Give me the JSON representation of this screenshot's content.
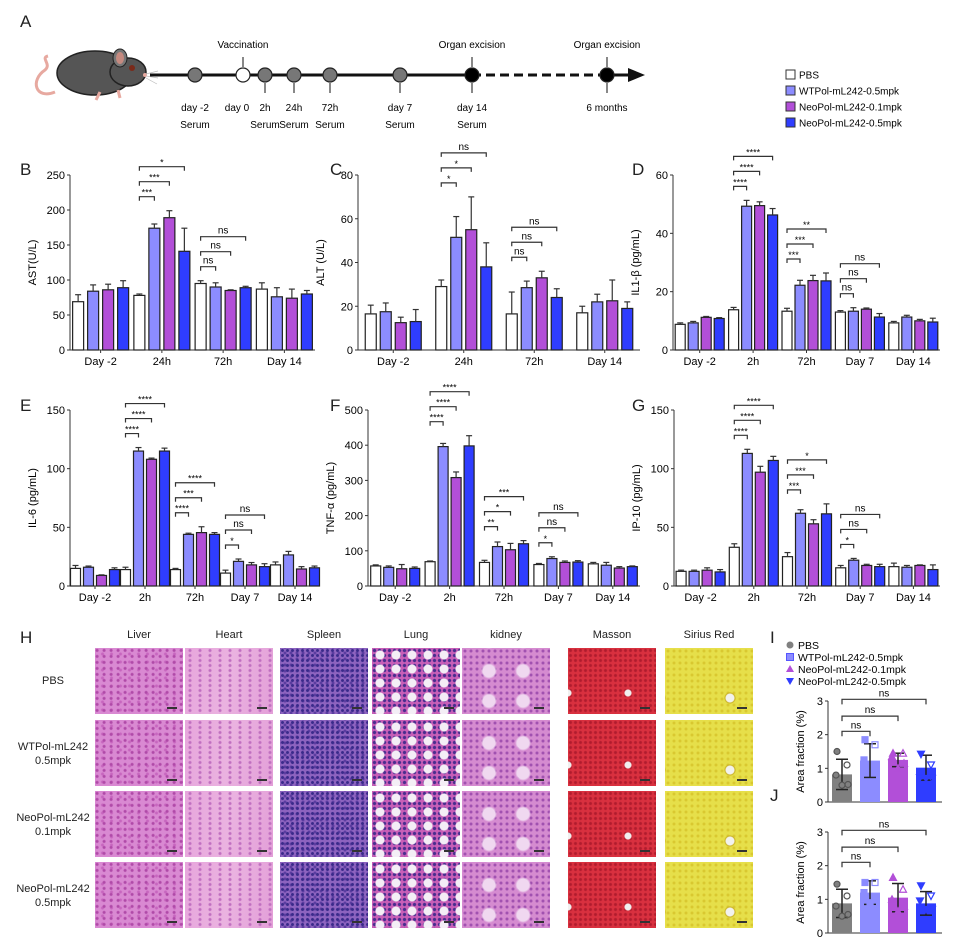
{
  "panel_labels": [
    "A",
    "B",
    "C",
    "D",
    "E",
    "F",
    "G",
    "H",
    "I",
    "J"
  ],
  "timeline": {
    "points": [
      {
        "label": "day -2",
        "sub": "Serum",
        "fill": "grey"
      },
      {
        "label": "day 0",
        "sub": "",
        "fill": "white"
      },
      {
        "label": "2h",
        "sub": "Serum",
        "fill": "grey"
      },
      {
        "label": "24h",
        "sub": "Serum",
        "fill": "grey"
      },
      {
        "label": "72h",
        "sub": "Serum",
        "fill": "grey"
      },
      {
        "label": "day 7",
        "sub": "Serum",
        "fill": "grey"
      },
      {
        "label": "day 14",
        "sub": "Serum",
        "fill": "black"
      },
      {
        "label": "6 months",
        "sub": "",
        "fill": "black"
      }
    ],
    "events": [
      {
        "label": "Vaccination",
        "at": "day 0"
      },
      {
        "label": "Organ excision",
        "at": "day 14"
      },
      {
        "label": "Organ excision",
        "at": "6 months"
      }
    ]
  },
  "legend": {
    "items": [
      {
        "label": "PBS",
        "color": "#ffffff"
      },
      {
        "label": "WTPol-mL242-0.5mpk",
        "color": "#8c8cff"
      },
      {
        "label": "NeoPol-mL242-0.1mpk",
        "color": "#b24fd8"
      },
      {
        "label": "NeoPol-mL242-0.5mpk",
        "color": "#2f3dff"
      }
    ]
  },
  "chart_data": [
    {
      "id": "B",
      "type": "bar",
      "ylabel": "AST(U/L)",
      "ylim": [
        0,
        250
      ],
      "yticks": [
        0,
        50,
        100,
        150,
        200,
        250
      ],
      "categories": [
        "Day -2",
        "24h",
        "72h",
        "Day 14"
      ],
      "series": [
        {
          "name": "PBS",
          "values": [
            69,
            78,
            95,
            87
          ],
          "errors": [
            10,
            2,
            4,
            9
          ]
        },
        {
          "name": "WTPol-mL242-0.5mpk",
          "values": [
            84,
            174,
            90,
            76
          ],
          "errors": [
            9,
            6,
            6,
            13
          ]
        },
        {
          "name": "NeoPol-mL242-0.1mpk",
          "values": [
            86,
            189,
            85,
            74
          ],
          "errors": [
            8,
            10,
            1,
            13
          ]
        },
        {
          "name": "NeoPol-mL242-0.5mpk",
          "values": [
            89,
            141,
            89,
            80
          ],
          "errors": [
            10,
            33,
            2,
            5
          ]
        }
      ],
      "significance": [
        {
          "category": "24h",
          "from": 0,
          "to": 1,
          "label": "***"
        },
        {
          "category": "24h",
          "from": 0,
          "to": 2,
          "label": "***"
        },
        {
          "category": "24h",
          "from": 0,
          "to": 3,
          "label": "*"
        },
        {
          "category": "72h",
          "from": 0,
          "to": 1,
          "label": "ns"
        },
        {
          "category": "72h",
          "from": 0,
          "to": 2,
          "label": "ns"
        },
        {
          "category": "72h",
          "from": 0,
          "to": 3,
          "label": "ns"
        }
      ]
    },
    {
      "id": "C",
      "type": "bar",
      "ylabel": "ALT (U/L)",
      "ylim": [
        0,
        80
      ],
      "yticks": [
        0,
        20,
        40,
        60,
        80
      ],
      "categories": [
        "Day -2",
        "24h",
        "72h",
        "Day 14"
      ],
      "series": [
        {
          "name": "PBS",
          "values": [
            16.5,
            29,
            16.5,
            17
          ],
          "errors": [
            4,
            3,
            10,
            3
          ]
        },
        {
          "name": "WTPol-mL242-0.5mpk",
          "values": [
            17.5,
            51.5,
            28.5,
            22
          ],
          "errors": [
            4,
            9.5,
            3,
            3.5
          ]
        },
        {
          "name": "NeoPol-mL242-0.1mpk",
          "values": [
            12.5,
            55,
            33,
            22.5
          ],
          "errors": [
            2.5,
            15,
            3,
            9.5
          ]
        },
        {
          "name": "NeoPol-mL242-0.5mpk",
          "values": [
            13,
            38,
            24,
            19
          ],
          "errors": [
            5.5,
            11,
            4,
            3
          ]
        }
      ],
      "significance": [
        {
          "category": "24h",
          "from": 0,
          "to": 1,
          "label": "*"
        },
        {
          "category": "24h",
          "from": 0,
          "to": 2,
          "label": "*"
        },
        {
          "category": "24h",
          "from": 0,
          "to": 3,
          "label": "ns"
        },
        {
          "category": "72h",
          "from": 0,
          "to": 1,
          "label": "ns"
        },
        {
          "category": "72h",
          "from": 0,
          "to": 2,
          "label": "ns"
        },
        {
          "category": "72h",
          "from": 0,
          "to": 3,
          "label": "ns"
        }
      ]
    },
    {
      "id": "D",
      "type": "bar",
      "ylabel": "IL1-β (pg/mL)",
      "ylim": [
        0,
        60
      ],
      "yticks": [
        0,
        20,
        40,
        60
      ],
      "categories": [
        "Day -2",
        "2h",
        "72h",
        "Day 7",
        "Day 14"
      ],
      "series": [
        {
          "name": "PBS",
          "values": [
            8.8,
            13.8,
            13.3,
            13,
            9.3
          ],
          "errors": [
            0.5,
            0.8,
            1,
            0.5,
            0.5
          ]
        },
        {
          "name": "WTPol-mL242-0.5mpk",
          "values": [
            9.3,
            49.3,
            22.2,
            13.3,
            11.3
          ],
          "errors": [
            0.5,
            2,
            1.7,
            1.2,
            0.6
          ]
        },
        {
          "name": "NeoPol-mL242-0.1mpk",
          "values": [
            11.2,
            49.5,
            23.8,
            14,
            10
          ],
          "errors": [
            0.3,
            1.3,
            1.8,
            0.4,
            0.5
          ]
        },
        {
          "name": "NeoPol-mL242-0.5mpk",
          "values": [
            10.8,
            46.3,
            23.7,
            11.3,
            9.6
          ],
          "errors": [
            0.3,
            2.2,
            2.7,
            1.2,
            1.3
          ]
        }
      ],
      "significance": [
        {
          "category": "2h",
          "from": 0,
          "to": 1,
          "label": "****"
        },
        {
          "category": "2h",
          "from": 0,
          "to": 2,
          "label": "****"
        },
        {
          "category": "2h",
          "from": 0,
          "to": 3,
          "label": "****"
        },
        {
          "category": "72h",
          "from": 0,
          "to": 1,
          "label": "***"
        },
        {
          "category": "72h",
          "from": 0,
          "to": 2,
          "label": "***"
        },
        {
          "category": "72h",
          "from": 0,
          "to": 3,
          "label": "**"
        },
        {
          "category": "Day 7",
          "from": 0,
          "to": 1,
          "label": "ns"
        },
        {
          "category": "Day 7",
          "from": 0,
          "to": 2,
          "label": "ns"
        },
        {
          "category": "Day 7",
          "from": 0,
          "to": 3,
          "label": "ns"
        }
      ]
    },
    {
      "id": "E",
      "type": "bar",
      "ylabel": "IL-6 (pg/mL)",
      "ylim": [
        0,
        150
      ],
      "yticks": [
        0,
        50,
        100,
        150
      ],
      "categories": [
        "Day -2",
        "2h",
        "72h",
        "Day 7",
        "Day 14"
      ],
      "series": [
        {
          "name": "PBS",
          "values": [
            15,
            14,
            14,
            11,
            18
          ],
          "errors": [
            2.5,
            2,
            1,
            2.5,
            2.5
          ]
        },
        {
          "name": "WTPol-mL242-0.5mpk",
          "values": [
            16,
            115,
            44,
            21,
            26.5
          ],
          "errors": [
            1,
            3,
            1,
            2,
            3
          ]
        },
        {
          "name": "NeoPol-mL242-0.1mpk",
          "values": [
            9,
            108,
            45.5,
            18,
            14.5
          ],
          "errors": [
            0.5,
            1,
            5,
            2,
            2
          ]
        },
        {
          "name": "NeoPol-mL242-0.5mpk",
          "values": [
            14,
            115,
            44,
            16.5,
            15.5
          ],
          "errors": [
            1.5,
            2.5,
            1.5,
            2.5,
            1.5
          ]
        }
      ],
      "significance": [
        {
          "category": "2h",
          "from": 0,
          "to": 1,
          "label": "****"
        },
        {
          "category": "2h",
          "from": 0,
          "to": 2,
          "label": "****"
        },
        {
          "category": "2h",
          "from": 0,
          "to": 3,
          "label": "****"
        },
        {
          "category": "72h",
          "from": 0,
          "to": 1,
          "label": "****"
        },
        {
          "category": "72h",
          "from": 0,
          "to": 2,
          "label": "***"
        },
        {
          "category": "72h",
          "from": 0,
          "to": 3,
          "label": "****"
        },
        {
          "category": "Day 7",
          "from": 0,
          "to": 1,
          "label": "*"
        },
        {
          "category": "Day 7",
          "from": 0,
          "to": 2,
          "label": "ns"
        },
        {
          "category": "Day 7",
          "from": 0,
          "to": 3,
          "label": "ns"
        }
      ]
    },
    {
      "id": "F",
      "type": "bar",
      "ylabel": "TNF-α (pg/mL)",
      "ylim": [
        0,
        500
      ],
      "yticks": [
        0,
        100,
        200,
        300,
        400,
        500
      ],
      "categories": [
        "Day -2",
        "2h",
        "72h",
        "Day 7",
        "Day 14"
      ],
      "series": [
        {
          "name": "PBS",
          "values": [
            57,
            69,
            67,
            61,
            63
          ],
          "errors": [
            3,
            2,
            6,
            3,
            4
          ]
        },
        {
          "name": "WTPol-mL242-0.5mpk",
          "values": [
            53,
            396,
            112,
            78,
            59
          ],
          "errors": [
            4,
            9,
            13,
            5,
            8
          ]
        },
        {
          "name": "NeoPol-mL242-0.1mpk",
          "values": [
            49,
            308,
            103,
            67,
            51
          ],
          "errors": [
            12,
            16,
            18,
            4,
            4
          ]
        },
        {
          "name": "NeoPol-mL242-0.5mpk",
          "values": [
            50,
            398,
            120,
            68,
            55
          ],
          "errors": [
            4,
            29,
            9,
            4,
            2
          ]
        }
      ],
      "significance": [
        {
          "category": "2h",
          "from": 0,
          "to": 1,
          "label": "****"
        },
        {
          "category": "2h",
          "from": 0,
          "to": 2,
          "label": "****"
        },
        {
          "category": "2h",
          "from": 0,
          "to": 3,
          "label": "****"
        },
        {
          "category": "72h",
          "from": 0,
          "to": 1,
          "label": "**"
        },
        {
          "category": "72h",
          "from": 0,
          "to": 2,
          "label": "*"
        },
        {
          "category": "72h",
          "from": 0,
          "to": 3,
          "label": "***"
        },
        {
          "category": "Day 7",
          "from": 0,
          "to": 1,
          "label": "*"
        },
        {
          "category": "Day 7",
          "from": 0,
          "to": 2,
          "label": "ns"
        },
        {
          "category": "Day 7",
          "from": 0,
          "to": 3,
          "label": "ns"
        }
      ]
    },
    {
      "id": "G",
      "type": "bar",
      "ylabel": "IP-10 (pg/mL)",
      "ylim": [
        0,
        150
      ],
      "yticks": [
        0,
        50,
        100,
        150
      ],
      "categories": [
        "Day -2",
        "2h",
        "72h",
        "Day 7",
        "Day 14"
      ],
      "series": [
        {
          "name": "PBS",
          "values": [
            12.5,
            33,
            25,
            15.5,
            16.5
          ],
          "errors": [
            1,
            3,
            3.5,
            2,
            3
          ]
        },
        {
          "name": "WTPol-mL242-0.5mpk",
          "values": [
            12.5,
            113,
            62,
            22,
            16
          ],
          "errors": [
            1,
            3.5,
            3,
            1.5,
            1.5
          ]
        },
        {
          "name": "NeoPol-mL242-0.1mpk",
          "values": [
            13.5,
            97,
            53,
            17.5,
            17.5
          ],
          "errors": [
            2,
            5,
            3.5,
            1,
            0.5
          ]
        },
        {
          "name": "NeoPol-mL242-0.5mpk",
          "values": [
            12,
            107,
            61.5,
            16.5,
            14
          ],
          "errors": [
            2,
            3.5,
            8.5,
            2,
            4
          ]
        }
      ],
      "significance": [
        {
          "category": "2h",
          "from": 0,
          "to": 1,
          "label": "****"
        },
        {
          "category": "2h",
          "from": 0,
          "to": 2,
          "label": "****"
        },
        {
          "category": "2h",
          "from": 0,
          "to": 3,
          "label": "****"
        },
        {
          "category": "72h",
          "from": 0,
          "to": 1,
          "label": "***"
        },
        {
          "category": "72h",
          "from": 0,
          "to": 2,
          "label": "***"
        },
        {
          "category": "72h",
          "from": 0,
          "to": 3,
          "label": "*"
        },
        {
          "category": "Day 7",
          "from": 0,
          "to": 1,
          "label": "*"
        },
        {
          "category": "Day 7",
          "from": 0,
          "to": 2,
          "label": "ns"
        },
        {
          "category": "Day 7",
          "from": 0,
          "to": 3,
          "label": "ns"
        }
      ]
    },
    {
      "id": "I",
      "type": "bar",
      "ylabel": "Area fraction (%)",
      "ylim": [
        0,
        3
      ],
      "yticks": [
        0,
        1,
        2,
        3
      ],
      "legend": [
        {
          "label": "PBS",
          "marker": "circle",
          "color": "#808080"
        },
        {
          "label": "WTPol-mL242-0.5mpk",
          "marker": "square",
          "color": "#8c8cff"
        },
        {
          "label": "NeoPol-mL242-0.1mpk",
          "marker": "triangle",
          "color": "#b24fd8"
        },
        {
          "label": "NeoPol-mL242-0.5mpk",
          "marker": "triangle-down",
          "color": "#2f3dff"
        }
      ],
      "values": [
        0.82,
        1.23,
        1.25,
        1.02
      ],
      "errors": [
        0.45,
        0.5,
        0.2,
        0.37
      ],
      "points": [
        [
          1.5,
          1.1,
          0.8,
          0.52,
          0.5
        ],
        [
          1.85,
          1.7,
          1.25,
          1.0,
          0.55
        ],
        [
          1.45,
          1.45,
          1.35,
          1.15,
          1.0
        ],
        [
          1.42,
          1.1,
          0.72,
          0.7,
          0.7
        ]
      ],
      "significance": [
        {
          "from": 0,
          "to": 1,
          "label": "ns"
        },
        {
          "from": 0,
          "to": 2,
          "label": "ns"
        },
        {
          "from": 0,
          "to": 3,
          "label": "ns"
        }
      ]
    },
    {
      "id": "J",
      "type": "bar",
      "ylabel": "Area fraction (%)",
      "ylim": [
        0,
        3
      ],
      "yticks": [
        0,
        1,
        2,
        3
      ],
      "values": [
        0.88,
        1.2,
        1.05,
        0.88
      ],
      "errors": [
        0.42,
        0.35,
        0.42,
        0.35
      ],
      "points": [
        [
          1.45,
          1.1,
          0.8,
          0.55,
          0.5
        ],
        [
          1.5,
          1.5,
          1.2,
          0.9,
          0.9
        ],
        [
          1.65,
          1.3,
          1.0,
          0.8,
          0.65
        ],
        [
          1.4,
          1.1,
          0.95,
          0.7,
          0.7
        ]
      ],
      "significance": [
        {
          "from": 0,
          "to": 1,
          "label": "ns"
        },
        {
          "from": 0,
          "to": 2,
          "label": "ns"
        },
        {
          "from": 0,
          "to": 3,
          "label": "ns"
        }
      ]
    }
  ],
  "histology": {
    "columns": [
      "Liver",
      "Heart",
      "Spleen",
      "Lung",
      "kidney",
      "Masson",
      "Sirius Red"
    ],
    "rows": [
      {
        "line1": "PBS",
        "line2": ""
      },
      {
        "line1": "WTPol-mL242",
        "line2": "0.5mpk"
      },
      {
        "line1": "NeoPol-mL242",
        "line2": "0.1mpk"
      },
      {
        "line1": "NeoPol-mL242",
        "line2": "0.5mpk"
      }
    ]
  }
}
